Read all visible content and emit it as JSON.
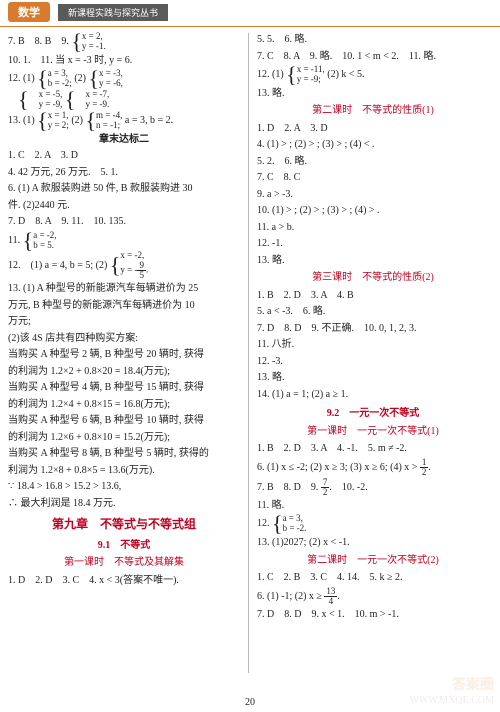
{
  "header": {
    "subject": "数学",
    "series": "新课程实践与探究丛书"
  },
  "left": {
    "l1": "7. B　8. B　9.",
    "l1s": {
      "a": "x = 2,",
      "b": "y = -1."
    },
    "l2": "10. 1.　11. 当 x = -3 时, y = 6.",
    "l3": "12. (1)",
    "l3s1": {
      "a": "a = 3,",
      "b": "b = -2;"
    },
    "l3m": "(2)",
    "l3s2": {
      "a": "x = -3,",
      "b": "y = -6,"
    },
    "l3x": "  ",
    "l3s3": {
      "a": "x = -5,",
      "b": "y = -9,"
    },
    "l3s4": {
      "a": "x = -7,",
      "b": "y = -9."
    },
    "l4": "13. (1)",
    "l4s1": {
      "a": "x = 1,",
      "b": "y = 2;"
    },
    "l4m": "(2)",
    "l4s2": {
      "a": "m = -4,",
      "b": "n = -1;"
    },
    "l4e": "a = 3, b = 2.",
    "h2": "章末达标二",
    "l5": "1. C　2. A　3. D",
    "l6": "4. 42 万元, 26 万元.　5. 1.",
    "l7": "6. (1) A 款服装购进 50 件, B 款服装购进 30",
    "l7b": "件. (2)2440 元.",
    "l8": "7. D　8. A　9. 11.　10. 135.",
    "l9": "11.",
    "l9s": {
      "a": "a = -2,",
      "b": "b = 5."
    },
    "l10": "12.　(1) a = 4, b = 5; (2)",
    "l10s": {
      "a": "x = -2,",
      "b": "y = -"
    },
    "l10f": {
      "n": "9",
      "d": "5"
    },
    "l10e": ".",
    "l11": "13. (1) A 种型号的新能源汽车每辆进价为 25",
    "l11b": "万元, B 种型号的新能源汽车每辆进价为 10",
    "l11c": "万元;",
    "l12": "(2)该 4S 店共有四种购买方案:",
    "l13": "当购买 A 种型号 2 辆, B 种型号 20 辆时, 获得",
    "l13b": "的利润为 1.2×2 + 0.8×20 = 18.4(万元);",
    "l14": "当购买 A 种型号 4 辆, B 种型号 15 辆时, 获得",
    "l14b": "的利润为 1.2×4 + 0.8×15 = 16.8(万元);",
    "l15": "当购买 A 种型号 6 辆, B 种型号 10 辆时, 获得",
    "l15b": "的利润为 1.2×6 + 0.8×10 = 15.2(万元);",
    "l16": "当购买 A 种型号 8 辆, B 种型号 5 辆时, 获得的",
    "l16b": "利润为 1.2×8 + 0.8×5 = 13.6(万元).",
    "l17": "∵ 18.4 > 16.8 > 15.2 > 13.6,",
    "l18": "∴ 最大利润是 18.4 万元.",
    "ch": "第九章　不等式与不等式组",
    "s91": "9.1　不等式",
    "p1": "第一课时　不等式及其解集",
    "l19": "1. D　2. D　3. C　4. x < 3(答案不唯一)."
  },
  "right": {
    "r1": "5. 5.　6. 略.",
    "r2": "7. C　8. A　9. 略.　10. 1 < m < 2.　11. 略.",
    "r3": "12. (1)",
    "r3s": {
      "a": "x = -11,",
      "b": "y = -9;"
    },
    "r3e": "(2) k < 5.",
    "r4": "13. 略.",
    "p2": "第二课时　不等式的性质(1)",
    "r5": "1. D　2. A　3. D",
    "r6": "4. (1) > ; (2) > ; (3) > ; (4) < .",
    "r7": "5. 2.　6. 略.",
    "r8": "7. C　8. C",
    "r9": "9. a > -3.",
    "r10": "10. (1) > ; (2) > ; (3) > ; (4) > .",
    "r11": "11. a > b.",
    "r12": "12. -1.",
    "r13": "13. 略.",
    "p3": "第三课时　不等式的性质(2)",
    "r14": "1. B　2. D　3. A　4. B",
    "r15": "5. a < -3.　6. 略.",
    "r16": "7. D　8. D　9. 不正确.　10. 0, 1, 2, 3.",
    "r17": "11. 八折.",
    "r18": "12. -3.",
    "r19": "13. 略.",
    "r20": "14. (1) a = 1; (2) a ≥ 1.",
    "s92": "9.2　一元一次不等式",
    "p4": "第一课时　一元一次不等式(1)",
    "r21": "1. B　2. D　3. A　4. -1.　5. m ≠ -2.",
    "r22": "6. (1) x ≤ -2; (2) x ≥ 3; (3) x ≥ 6; (4) x > ",
    "r22f": {
      "n": "1",
      "d": "2"
    },
    "r22e": ".",
    "r23": "7. B　8. D　9. ",
    "r23f": {
      "n": "7",
      "d": "2"
    },
    "r23e": ".　10. -2.",
    "r24": "11. 略.",
    "r25": "12.",
    "r25s": {
      "a": "a = 3,",
      "b": "b = -2."
    },
    "r26": "13. (1)2027; (2) x < -1.",
    "p5": "第二课时　一元一次不等式(2)",
    "r27": "1. C　2. B　3. C　4. 14.　5. k ≥ 2.",
    "r28": "6. (1) -1; (2) x ≥ ",
    "r28f": {
      "n": "13",
      "d": "4"
    },
    "r28e": ".",
    "r29": "7. D　8. D　9. x < 1.　10. m > -1."
  },
  "page": "20",
  "wm": "WWW.MXQE.COM",
  "wm2": "答案圈"
}
